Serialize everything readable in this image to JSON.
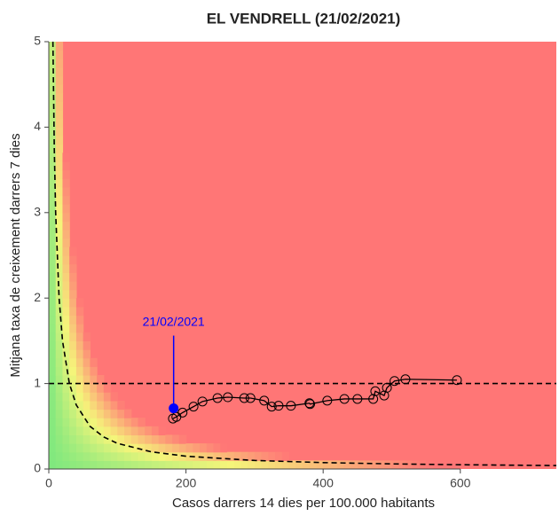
{
  "chart_data": {
    "type": "scatter",
    "title": "EL VENDRELL (21/02/2021)",
    "xlabel": "Casos darrers 14 dies per 100.000 habitants",
    "ylabel": "Mitjana taxa de creixement darrers 7 dies",
    "xlim": [
      0,
      740
    ],
    "ylim": [
      0,
      5
    ],
    "xticks": [
      0,
      200,
      400,
      600
    ],
    "yticks": [
      0,
      1,
      2,
      3,
      4,
      5
    ],
    "x": [
      595,
      520,
      504,
      493,
      489,
      476,
      473,
      450,
      431,
      406,
      381,
      380,
      353,
      335,
      325,
      314,
      294,
      285,
      261,
      246,
      224,
      211,
      195,
      186,
      181
    ],
    "values": [
      1.04,
      1.05,
      1.03,
      0.95,
      0.86,
      0.91,
      0.82,
      0.82,
      0.82,
      0.8,
      0.76,
      0.77,
      0.74,
      0.74,
      0.73,
      0.8,
      0.83,
      0.83,
      0.84,
      0.83,
      0.79,
      0.73,
      0.66,
      0.61,
      0.59
    ],
    "color": "#000000",
    "highlight": {
      "x": 182,
      "y": 0.71,
      "label": "21/02/2021",
      "color": "#0000ff"
    },
    "hline": 1,
    "curve": {
      "x": [
        6,
        8,
        10,
        15,
        20,
        30,
        40,
        60,
        80,
        100,
        150,
        200,
        300,
        400,
        500,
        600,
        740
      ],
      "y": [
        5,
        3.75,
        3,
        2,
        1.5,
        1,
        0.75,
        0.5,
        0.375,
        0.3,
        0.2,
        0.15,
        0.1,
        0.075,
        0.06,
        0.05,
        0.0405
      ]
    }
  }
}
